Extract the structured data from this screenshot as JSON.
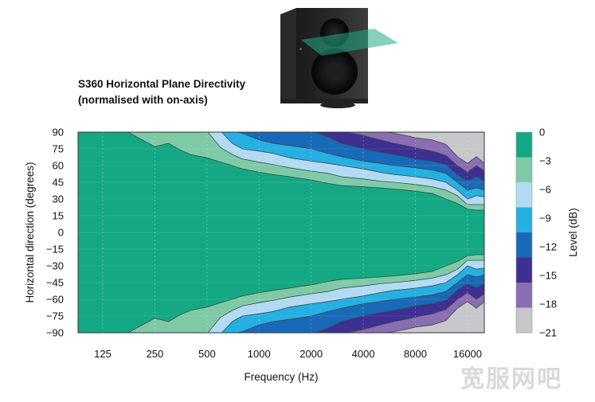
{
  "chart_data": {
    "type": "heatmap",
    "title": "S360 Horizontal Plane Directivity",
    "subtitle": "(normalised with on-axis)",
    "xlabel": "Frequency (Hz)",
    "ylabel": "Horizontal direction (degrees)",
    "x_scale": "log",
    "x_ticks": [
      125,
      250,
      500,
      1000,
      2000,
      4000,
      8000,
      16000
    ],
    "xlim": [
      90,
      20000
    ],
    "y_ticks": [
      90,
      75,
      60,
      45,
      30,
      15,
      0,
      -15,
      -30,
      -45,
      -60,
      -75,
      -90
    ],
    "y_tick_labels": [
      "90",
      "75",
      "60",
      "45",
      "30",
      "15",
      "0",
      "−15",
      "−30",
      "−45",
      "−60",
      "−75",
      "−90"
    ],
    "ylim": [
      -90,
      90
    ],
    "colorbar": {
      "label": "Level (dB)",
      "ticks": [
        "0",
        "−3",
        "−6",
        "−9",
        "−12",
        "−15",
        "−18",
        "−21"
      ],
      "colors": [
        "#14a884",
        "#7fcaa6",
        "#b2dbf3",
        "#26afe2",
        "#1869b8",
        "#3e2f92",
        "#8a6db2",
        "#c6c8cc"
      ]
    },
    "levels": [
      -3,
      -6,
      -9,
      -12,
      -15,
      -18,
      -21
    ],
    "frequencies": [
      90,
      125,
      150,
      175,
      200,
      250,
      300,
      350,
      400,
      500,
      600,
      700,
      800,
      1000,
      1200,
      1500,
      2000,
      2500,
      3000,
      4000,
      5000,
      6000,
      7000,
      8000,
      10000,
      12000,
      14000,
      16000,
      18000,
      20000
    ],
    "contours_deg": {
      "-3": [
        91,
        91,
        91,
        90,
        85,
        77,
        80,
        74,
        70,
        67,
        63,
        60,
        57,
        54,
        52,
        50,
        47,
        44,
        42,
        41,
        40,
        39,
        38,
        37,
        35,
        30,
        26,
        21,
        20,
        20
      ],
      "-6": [
        91,
        91,
        91,
        91,
        91,
        91,
        91,
        91,
        91,
        91,
        76,
        70,
        66,
        63,
        61,
        58,
        55,
        53,
        50,
        48,
        46,
        45,
        44,
        43,
        41,
        38,
        33,
        25,
        25,
        25
      ],
      "-9": [
        91,
        91,
        91,
        91,
        91,
        91,
        91,
        91,
        91,
        91,
        91,
        80,
        75,
        73,
        71,
        67,
        64,
        62,
        60,
        57,
        54,
        52,
        51,
        50,
        48,
        45,
        38,
        30,
        33,
        32
      ],
      "-12": [
        91,
        91,
        91,
        91,
        91,
        91,
        91,
        91,
        91,
        91,
        91,
        91,
        89,
        83,
        80,
        78,
        75,
        71,
        68,
        64,
        62,
        60,
        59,
        58,
        56,
        53,
        45,
        38,
        40,
        38
      ],
      "-15": [
        91,
        91,
        91,
        91,
        91,
        91,
        91,
        91,
        91,
        91,
        91,
        91,
        91,
        91,
        91,
        90,
        91,
        86,
        80,
        75,
        72,
        70,
        68,
        66,
        64,
        61,
        52,
        46,
        50,
        46
      ],
      "-18": [
        91,
        91,
        91,
        91,
        91,
        91,
        91,
        91,
        91,
        91,
        91,
        91,
        91,
        91,
        91,
        91,
        91,
        91,
        91,
        87,
        83,
        80,
        78,
        76,
        73,
        69,
        60,
        54,
        60,
        55
      ],
      "-21": [
        91,
        91,
        91,
        91,
        91,
        91,
        91,
        91,
        91,
        91,
        91,
        91,
        91,
        91,
        91,
        91,
        91,
        91,
        91,
        91,
        91,
        89,
        87,
        85,
        83,
        79,
        68,
        62,
        68,
        62
      ]
    },
    "grid": true
  },
  "watermark": "宽服网吧",
  "icons": {
    "speaker": "studio-monitor-speaker-icon"
  }
}
